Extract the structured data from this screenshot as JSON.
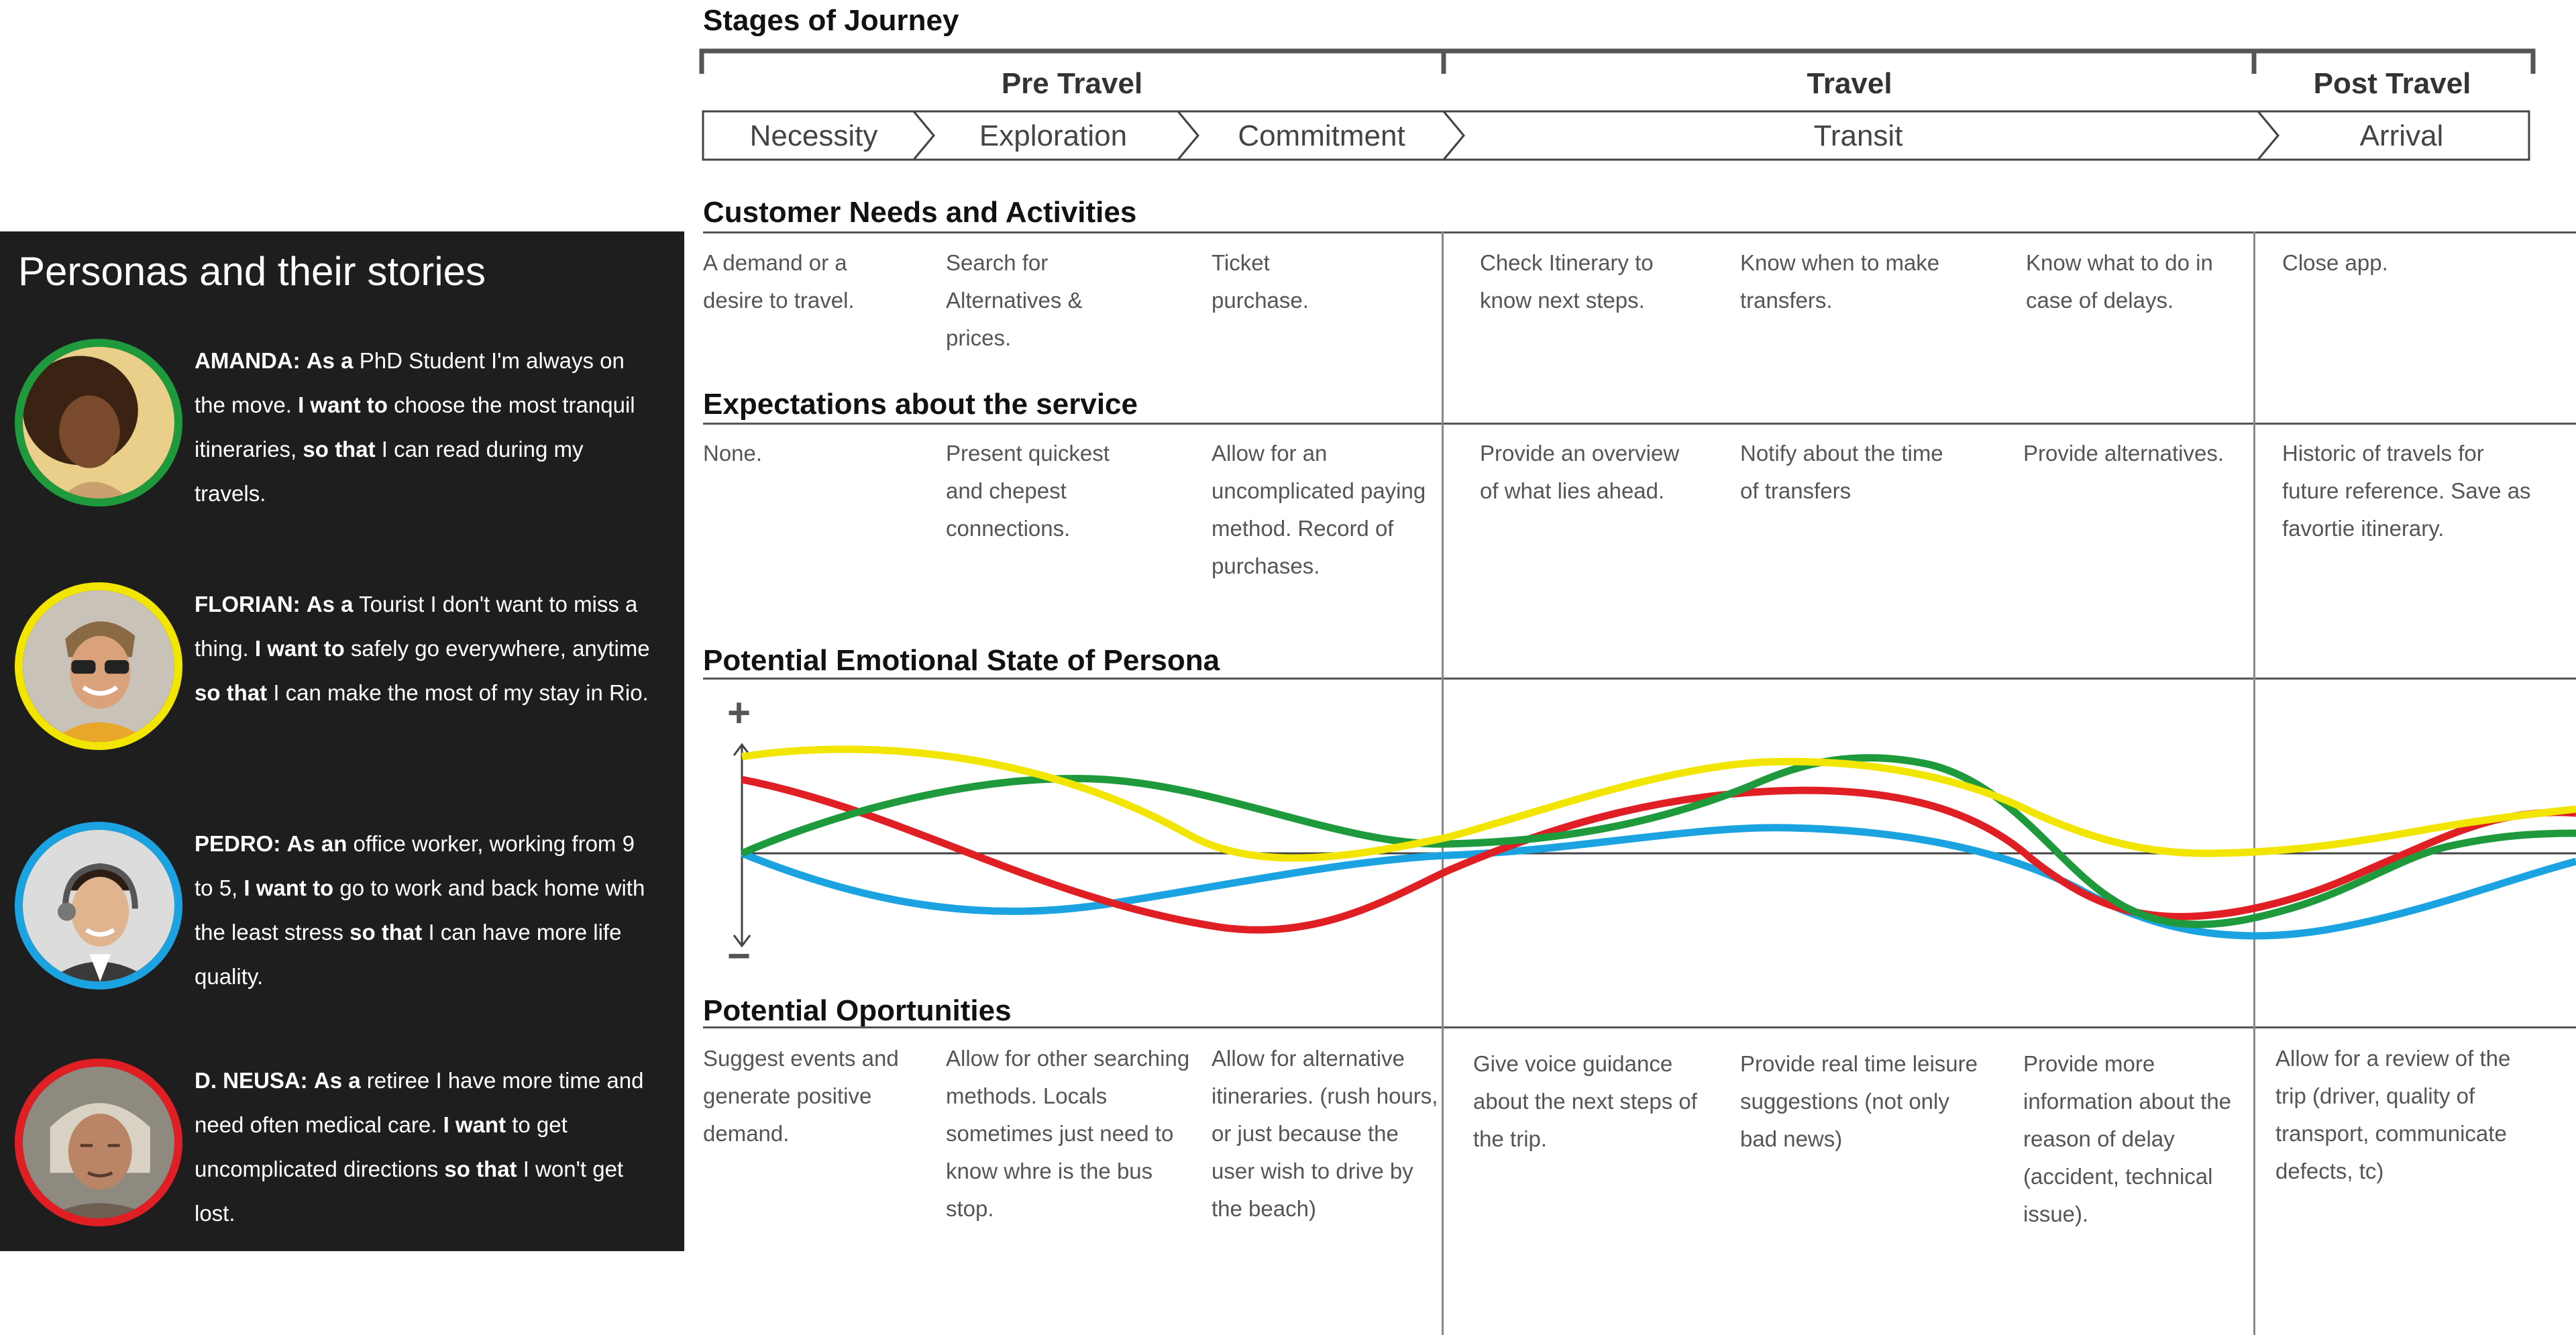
{
  "personas": {
    "title": "Personas and their stories",
    "items": [
      {
        "name": "AMANDA:",
        "p1": "As a",
        "t1": " PhD Student I'm always on the move. ",
        "p2": "I want to",
        "t2": " choose the most tranquil itineraries, ",
        "p3": "so that",
        "t3": " I can read during my travels.",
        "ring": "#1e9a3c"
      },
      {
        "name": "FLORIAN:",
        "p1": "As a",
        "t1": " Tourist I don't want to miss a thing. ",
        "p2": "I want to",
        "t2": " safely go everywhere, anytime ",
        "p3": "so that",
        "t3": " I can make the most of my stay in Rio.",
        "ring": "#f2e500"
      },
      {
        "name": "PEDRO:",
        "p1": "As an",
        "t1": " office worker, working from 9 to 5, ",
        "p2": "I want to",
        "t2": " go to work and back home with the least stress ",
        "p3": "so that",
        "t3": " I can have more life quality.",
        "ring": "#1aa3e0"
      },
      {
        "name": "D. NEUSA:",
        "p1": "As a",
        "t1": " retiree I have more time and need often medical care. ",
        "p2": "I want",
        "t2": " to get uncomplicated directions ",
        "p3": "so that",
        "t3": " I won't get lost.",
        "ring": "#e01f25"
      }
    ]
  },
  "journey": {
    "title": "Stages of Journey",
    "phases": [
      "Pre Travel",
      "Travel",
      "Post Travel"
    ],
    "stages": [
      "Necessity",
      "Exploration",
      "Commitment",
      "Transit",
      "Arrival"
    ]
  },
  "needs": {
    "title": "Customer Needs and Activities",
    "cells": [
      "A demand or a desire to travel.",
      "Search for Alternatives & prices.",
      "Ticket purchase.",
      "Check Itinerary to know next steps.",
      "Know when to make transfers.",
      "Know what to do in case of delays.",
      "Close app."
    ]
  },
  "expectations": {
    "title": "Expectations about the service",
    "cells": [
      "None.",
      "Present quickest and chepest connections.",
      "Allow for an uncomplicated paying method. Record of purchases.",
      "Provide an overview of what lies ahead.",
      "Notify about the time of transfers",
      "Provide alternatives.",
      "Historic of travels for future reference. Save as favortie itinerary."
    ]
  },
  "emotional": {
    "title": "Potential Emotional State of Persona",
    "plus": "+",
    "minus": "−",
    "colors": {
      "amanda": "#1e9a3c",
      "florian": "#f2e500",
      "pedro": "#1aa3e0",
      "neusa": "#e01f25"
    }
  },
  "opportunities": {
    "title": "Potential Oportunities",
    "cells": [
      "Suggest events and generate positive demand.",
      "Allow for other searching methods. Locals sometimes just need to know whre is the bus stop.",
      "Allow for alternative itineraries. (rush hours, or just because the user wish to drive by the beach)",
      "Give voice guidance about the next steps of the trip.",
      "Provide real time leisure suggestions (not only bad news)",
      "Provide more information about the reason of delay (accident, technical issue).",
      "Allow for a review of the trip (driver, quality of transport, communicate defects, tc)"
    ]
  }
}
